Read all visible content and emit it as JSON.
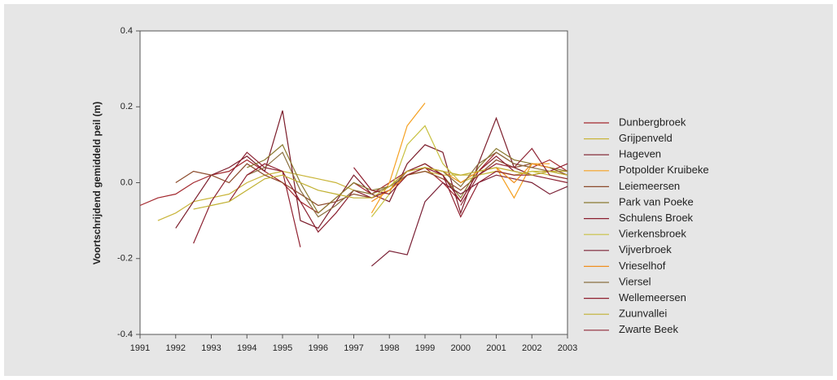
{
  "chart_data": {
    "type": "line",
    "y_label": "Voortschrijdend gemiddeld peil (m)",
    "x": [
      1991,
      1991.5,
      1992,
      1992.5,
      1993,
      1993.5,
      1994,
      1994.5,
      1995,
      1995.5,
      1996,
      1996.5,
      1997,
      1997.5,
      1998,
      1998.5,
      1999,
      1999.5,
      2000,
      2000.5,
      2001,
      2001.5,
      2002,
      2002.5,
      2003
    ],
    "xlim": [
      1991,
      2003
    ],
    "xticks": [
      1991,
      1992,
      1993,
      1994,
      1995,
      1996,
      1997,
      1998,
      1999,
      2000,
      2001,
      2002,
      2003
    ],
    "ylim": [
      -0.4,
      0.4
    ],
    "yticks": [
      -0.4,
      -0.2,
      {
        "value": 0,
        "label": "0.0"
      },
      0.2,
      0.4
    ],
    "grid": false,
    "legend": "right",
    "series": [
      {
        "name": "Dunbergbroek",
        "color": "#a3282e",
        "values": [
          -0.06,
          -0.04,
          -0.03,
          0.0,
          0.02,
          0.03,
          0.06,
          0.03,
          0.0,
          -0.05,
          -0.08,
          -0.04,
          0.0,
          -0.03,
          0.0,
          0.03,
          0.04,
          0.0,
          -0.05,
          0.03,
          0.08,
          0.05,
          0.04,
          0.06,
          0.03
        ]
      },
      {
        "name": "Grijpenveld",
        "color": "#c9b53a",
        "values": [
          null,
          -0.1,
          -0.08,
          -0.05,
          -0.04,
          -0.03,
          0.0,
          0.02,
          0.03,
          0.02,
          0.01,
          0.0,
          -0.02,
          -0.03,
          -0.01,
          0.02,
          0.03,
          0.02,
          0.02,
          0.02,
          0.03,
          0.02,
          0.03,
          0.03,
          0.03
        ]
      },
      {
        "name": "Hageven",
        "color": "#7b1c2a",
        "values": [
          null,
          null,
          -0.12,
          -0.05,
          0.02,
          0.04,
          0.07,
          0.03,
          0.19,
          -0.1,
          -0.12,
          -0.05,
          0.02,
          -0.03,
          -0.05,
          0.05,
          0.1,
          0.08,
          -0.08,
          0.05,
          0.17,
          0.04,
          0.02,
          null,
          null
        ]
      },
      {
        "name": "Potpolder Kruibeke",
        "color": "#f5a020",
        "values": [
          null,
          null,
          null,
          null,
          null,
          null,
          null,
          null,
          null,
          null,
          null,
          null,
          null,
          -0.08,
          0.0,
          0.15,
          0.21,
          null,
          null,
          null,
          0.04,
          -0.04,
          0.05,
          0.05,
          null
        ]
      },
      {
        "name": "Leiemeersen",
        "color": "#8b4a2b",
        "values": [
          null,
          null,
          0.0,
          0.03,
          0.02,
          0.0,
          0.05,
          0.02,
          0.0,
          -0.03,
          -0.06,
          -0.05,
          -0.03,
          -0.04,
          -0.02,
          0.02,
          0.03,
          0.01,
          -0.02,
          0.02,
          0.06,
          0.04,
          0.05,
          0.04,
          0.02
        ]
      },
      {
        "name": "Park van Poeke",
        "color": "#8a7a30",
        "values": [
          null,
          null,
          null,
          null,
          null,
          null,
          0.04,
          0.06,
          0.1,
          0.0,
          -0.08,
          -0.04,
          0.0,
          -0.02,
          -0.01,
          0.03,
          0.05,
          0.02,
          -0.04,
          0.04,
          0.09,
          0.06,
          0.05,
          0.04,
          0.03
        ]
      },
      {
        "name": "Schulens Broek",
        "color": "#8b2030",
        "values": [
          null,
          null,
          null,
          -0.16,
          -0.05,
          0.02,
          0.08,
          0.04,
          0.03,
          -0.05,
          -0.13,
          -0.08,
          -0.02,
          -0.04,
          -0.02,
          0.03,
          0.05,
          0.02,
          -0.05,
          0.03,
          0.07,
          0.03,
          0.02,
          0.01,
          0.0
        ]
      },
      {
        "name": "Vierkensbroek",
        "color": "#c8c040",
        "values": [
          null,
          null,
          null,
          null,
          null,
          null,
          null,
          null,
          null,
          null,
          null,
          null,
          null,
          -0.09,
          -0.03,
          0.1,
          0.15,
          0.05,
          0.0,
          0.02,
          0.03,
          0.02,
          0.03,
          0.02,
          0.01
        ]
      },
      {
        "name": "Vijverbroek",
        "color": "#7a2035",
        "values": [
          null,
          null,
          null,
          null,
          null,
          null,
          null,
          null,
          null,
          null,
          null,
          null,
          null,
          -0.22,
          -0.18,
          -0.19,
          -0.05,
          0.0,
          -0.03,
          0.0,
          0.02,
          0.01,
          0.0,
          -0.03,
          -0.01
        ]
      },
      {
        "name": "Vrieselhof",
        "color": "#f09020",
        "values": [
          null,
          null,
          null,
          null,
          null,
          null,
          null,
          null,
          null,
          null,
          null,
          null,
          null,
          -0.05,
          -0.02,
          0.02,
          0.04,
          0.03,
          0.0,
          0.03,
          0.04,
          0.0,
          0.05,
          0.04,
          null
        ]
      },
      {
        "name": "Viersel",
        "color": "#8a7040",
        "values": [
          null,
          null,
          null,
          null,
          null,
          null,
          0.02,
          0.04,
          0.08,
          -0.02,
          -0.09,
          -0.06,
          -0.02,
          -0.03,
          -0.01,
          0.02,
          0.04,
          0.03,
          -0.01,
          0.05,
          0.08,
          0.05,
          0.04,
          0.03,
          0.02
        ]
      },
      {
        "name": "Wellemeersen",
        "color": "#902030",
        "values": [
          null,
          null,
          null,
          null,
          null,
          -0.05,
          0.02,
          0.05,
          0.03,
          -0.17,
          null,
          null,
          0.04,
          -0.02,
          -0.03,
          0.02,
          0.04,
          0.02,
          -0.09,
          0.0,
          0.03,
          0.02,
          0.02,
          0.03,
          0.05
        ]
      },
      {
        "name": "Zuunvallei",
        "color": "#c0b030",
        "values": [
          null,
          null,
          null,
          -0.07,
          -0.06,
          -0.05,
          -0.02,
          0.01,
          0.02,
          0.0,
          -0.02,
          -0.03,
          -0.04,
          -0.04,
          -0.01,
          0.03,
          0.04,
          0.03,
          0.02,
          0.03,
          0.04,
          0.03,
          0.02,
          0.03,
          0.02
        ]
      },
      {
        "name": "Zwarte Beek",
        "color": "#902838",
        "values": [
          null,
          null,
          null,
          null,
          null,
          null,
          null,
          null,
          null,
          null,
          null,
          null,
          null,
          null,
          null,
          null,
          null,
          null,
          -0.06,
          0.02,
          0.05,
          0.04,
          0.09,
          0.02,
          0.01
        ]
      }
    ]
  }
}
